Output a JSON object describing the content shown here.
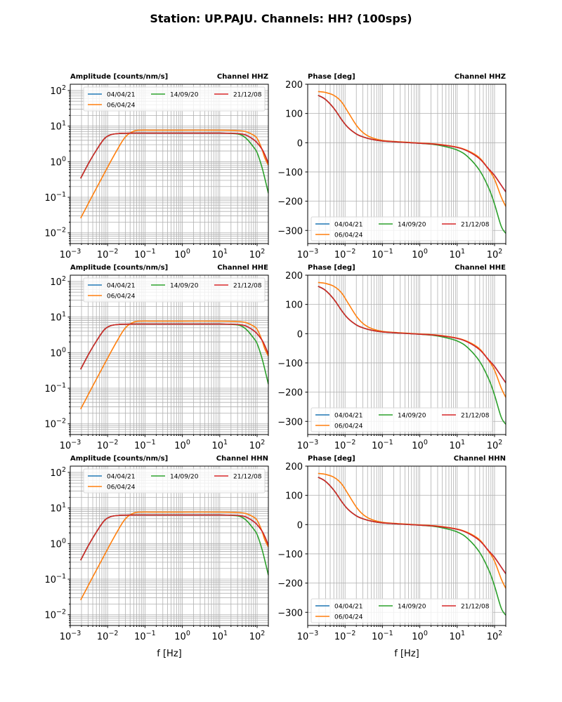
{
  "figure": {
    "title": "Station: UP.PAJU. Channels: HH? (100sps)",
    "xlabel": "f [Hz]"
  },
  "series_style": [
    {
      "name": "04/04/21",
      "color": "#1f77b4"
    },
    {
      "name": "06/04/24",
      "color": "#ff7f0e"
    },
    {
      "name": "14/09/20",
      "color": "#2ca02c"
    },
    {
      "name": "21/12/08",
      "color": "#d62728"
    }
  ],
  "chart_data": [
    {
      "type": "line",
      "panel": "amplitude",
      "channel_label": "Channel HHZ",
      "title": "Amplitude [counts/nm/s]",
      "xscale": "log",
      "yscale": "log",
      "xlim": [
        0.001,
        200
      ],
      "ylim": [
        0.005,
        150
      ],
      "xticks": [
        "10^-3",
        "10^-2",
        "10^-1",
        "10^0",
        "10^1",
        "10^2"
      ],
      "yticks": [
        "10^-2",
        "10^-1",
        "10^0",
        "10^1",
        "10^2"
      ],
      "grid": "major+minor",
      "legend": "top-center",
      "x": [
        0.0019,
        0.003,
        0.005,
        0.008,
        0.012,
        0.02,
        0.03,
        0.05,
        0.08,
        0.15,
        1,
        10,
        30,
        50,
        80,
        100,
        130,
        160,
        200
      ],
      "series": [
        {
          "name": "04/04/21",
          "values": [
            0.34,
            0.85,
            2.1,
            4.3,
            5.7,
            6.2,
            6.3,
            6.35,
            6.35,
            6.35,
            6.35,
            6.35,
            6.2,
            5.6,
            4.2,
            3.4,
            2.4,
            1.6,
            0.9
          ]
        },
        {
          "name": "06/04/24",
          "values": [
            0.026,
            0.065,
            0.18,
            0.45,
            1.0,
            2.6,
            5.0,
            7.2,
            7.7,
            7.7,
            7.7,
            7.7,
            7.5,
            7.0,
            5.6,
            4.5,
            2.5,
            1.3,
            0.8
          ]
        },
        {
          "name": "14/09/20",
          "values": [
            0.34,
            0.85,
            2.1,
            4.3,
            5.7,
            6.2,
            6.3,
            6.35,
            6.35,
            6.35,
            6.35,
            6.35,
            6.0,
            4.6,
            2.6,
            1.8,
            0.8,
            0.35,
            0.13
          ]
        },
        {
          "name": "21/12/08",
          "values": [
            0.34,
            0.85,
            2.1,
            4.3,
            5.7,
            6.2,
            6.3,
            6.35,
            6.35,
            6.35,
            6.35,
            6.35,
            6.2,
            5.6,
            4.2,
            3.4,
            2.4,
            1.6,
            0.9
          ]
        }
      ]
    },
    {
      "type": "line",
      "panel": "phase",
      "channel_label": "Channel HHZ",
      "title": "Phase [deg]",
      "xscale": "log",
      "yscale": "linear",
      "xlim": [
        0.001,
        200
      ],
      "ylim": [
        -345,
        200
      ],
      "xticks": [
        "10^-3",
        "10^-2",
        "10^-1",
        "10^0",
        "10^1",
        "10^2"
      ],
      "yticks": [
        "-300",
        "-200",
        "-100",
        "0",
        "100",
        "200"
      ],
      "grid": "major+minor-x",
      "legend": "bottom-left",
      "x": [
        0.0019,
        0.003,
        0.005,
        0.008,
        0.012,
        0.02,
        0.03,
        0.05,
        0.1,
        0.3,
        1,
        3,
        10,
        20,
        40,
        70,
        100,
        150,
        200
      ],
      "series": [
        {
          "name": "04/04/21",
          "values": [
            162,
            148,
            118,
            80,
            52,
            30,
            20,
            12,
            6,
            2,
            -2,
            -6,
            -16,
            -30,
            -55,
            -90,
            -112,
            -145,
            -168
          ]
        },
        {
          "name": "06/04/24",
          "values": [
            175,
            172,
            162,
            140,
            105,
            60,
            35,
            18,
            8,
            3,
            -1,
            -5,
            -15,
            -28,
            -52,
            -92,
            -125,
            -185,
            -218
          ]
        },
        {
          "name": "14/09/20",
          "values": [
            162,
            148,
            118,
            80,
            52,
            30,
            20,
            12,
            6,
            2,
            -2,
            -8,
            -25,
            -50,
            -95,
            -155,
            -210,
            -285,
            -310
          ]
        },
        {
          "name": "21/12/08",
          "values": [
            162,
            148,
            118,
            80,
            52,
            30,
            20,
            12,
            6,
            2,
            -2,
            -6,
            -16,
            -30,
            -55,
            -90,
            -112,
            -145,
            -168
          ]
        }
      ]
    },
    {
      "type": "line",
      "panel": "amplitude",
      "channel_label": "Channel HHE",
      "title": "Amplitude [counts/nm/s]",
      "xscale": "log",
      "yscale": "log",
      "xlim": [
        0.001,
        200
      ],
      "ylim": [
        0.005,
        150
      ],
      "xticks": [
        "10^-3",
        "10^-2",
        "10^-1",
        "10^0",
        "10^1",
        "10^2"
      ],
      "yticks": [
        "10^-2",
        "10^-1",
        "10^0",
        "10^1",
        "10^2"
      ],
      "grid": "major+minor",
      "legend": "top-center",
      "x": [
        0.0019,
        0.003,
        0.005,
        0.008,
        0.012,
        0.02,
        0.03,
        0.05,
        0.08,
        0.15,
        1,
        10,
        30,
        50,
        80,
        100,
        130,
        160,
        200
      ],
      "series": [
        {
          "name": "04/04/21",
          "values": [
            0.34,
            0.85,
            2.1,
            4.3,
            5.7,
            6.2,
            6.3,
            6.35,
            6.35,
            6.35,
            6.35,
            6.35,
            6.2,
            5.6,
            4.2,
            3.4,
            2.4,
            1.6,
            0.9
          ]
        },
        {
          "name": "06/04/24",
          "values": [
            0.026,
            0.065,
            0.18,
            0.45,
            1.0,
            2.6,
            5.0,
            7.2,
            7.7,
            7.7,
            7.7,
            7.7,
            7.5,
            7.0,
            5.6,
            4.5,
            2.5,
            1.3,
            0.8
          ]
        },
        {
          "name": "14/09/20",
          "values": [
            0.34,
            0.85,
            2.1,
            4.3,
            5.7,
            6.2,
            6.3,
            6.35,
            6.35,
            6.35,
            6.35,
            6.35,
            6.0,
            4.6,
            2.6,
            1.8,
            0.8,
            0.35,
            0.13
          ]
        },
        {
          "name": "21/12/08",
          "values": [
            0.34,
            0.85,
            2.1,
            4.3,
            5.7,
            6.2,
            6.3,
            6.35,
            6.35,
            6.35,
            6.35,
            6.35,
            6.2,
            5.6,
            4.2,
            3.4,
            2.4,
            1.6,
            0.9
          ]
        }
      ]
    },
    {
      "type": "line",
      "panel": "phase",
      "channel_label": "Channel HHE",
      "title": "Phase [deg]",
      "xscale": "log",
      "yscale": "linear",
      "xlim": [
        0.001,
        200
      ],
      "ylim": [
        -345,
        200
      ],
      "xticks": [
        "10^-3",
        "10^-2",
        "10^-1",
        "10^0",
        "10^1",
        "10^2"
      ],
      "yticks": [
        "-300",
        "-200",
        "-100",
        "0",
        "100",
        "200"
      ],
      "grid": "major+minor-x",
      "legend": "bottom-left",
      "x": [
        0.0019,
        0.003,
        0.005,
        0.008,
        0.012,
        0.02,
        0.03,
        0.05,
        0.1,
        0.3,
        1,
        3,
        10,
        20,
        40,
        70,
        100,
        150,
        200
      ],
      "series": [
        {
          "name": "04/04/21",
          "values": [
            162,
            148,
            118,
            80,
            52,
            30,
            20,
            12,
            6,
            2,
            -2,
            -6,
            -16,
            -30,
            -55,
            -90,
            -112,
            -145,
            -168
          ]
        },
        {
          "name": "06/04/24",
          "values": [
            175,
            172,
            162,
            140,
            105,
            60,
            35,
            18,
            8,
            3,
            -1,
            -5,
            -15,
            -28,
            -52,
            -92,
            -125,
            -185,
            -218
          ]
        },
        {
          "name": "14/09/20",
          "values": [
            162,
            148,
            118,
            80,
            52,
            30,
            20,
            12,
            6,
            2,
            -2,
            -8,
            -25,
            -50,
            -95,
            -155,
            -210,
            -285,
            -310
          ]
        },
        {
          "name": "21/12/08",
          "values": [
            162,
            148,
            118,
            80,
            52,
            30,
            20,
            12,
            6,
            2,
            -2,
            -6,
            -16,
            -30,
            -55,
            -90,
            -112,
            -145,
            -168
          ]
        }
      ]
    },
    {
      "type": "line",
      "panel": "amplitude",
      "channel_label": "Channel HHN",
      "title": "Amplitude [counts/nm/s]",
      "xscale": "log",
      "yscale": "log",
      "xlim": [
        0.001,
        200
      ],
      "ylim": [
        0.005,
        150
      ],
      "xticks": [
        "10^-3",
        "10^-2",
        "10^-1",
        "10^0",
        "10^1",
        "10^2"
      ],
      "yticks": [
        "10^-2",
        "10^-1",
        "10^0",
        "10^1",
        "10^2"
      ],
      "grid": "major+minor",
      "legend": "top-center",
      "x": [
        0.0019,
        0.003,
        0.005,
        0.008,
        0.012,
        0.02,
        0.03,
        0.05,
        0.08,
        0.15,
        1,
        10,
        30,
        50,
        80,
        100,
        130,
        160,
        200
      ],
      "series": [
        {
          "name": "04/04/21",
          "values": [
            0.34,
            0.85,
            2.1,
            4.3,
            5.7,
            6.2,
            6.3,
            6.35,
            6.35,
            6.35,
            6.35,
            6.35,
            6.2,
            5.6,
            4.2,
            3.4,
            2.4,
            1.6,
            0.9
          ]
        },
        {
          "name": "06/04/24",
          "values": [
            0.026,
            0.065,
            0.18,
            0.45,
            1.0,
            2.6,
            5.0,
            7.2,
            7.7,
            7.7,
            7.7,
            7.7,
            7.5,
            7.0,
            5.6,
            4.5,
            2.5,
            1.3,
            0.8
          ]
        },
        {
          "name": "14/09/20",
          "values": [
            0.34,
            0.85,
            2.1,
            4.3,
            5.7,
            6.2,
            6.3,
            6.35,
            6.35,
            6.35,
            6.35,
            6.35,
            6.0,
            4.6,
            2.6,
            1.8,
            0.8,
            0.35,
            0.13
          ]
        },
        {
          "name": "21/12/08",
          "values": [
            0.34,
            0.85,
            2.1,
            4.3,
            5.7,
            6.2,
            6.3,
            6.35,
            6.35,
            6.35,
            6.35,
            6.35,
            6.2,
            5.6,
            4.2,
            3.4,
            2.4,
            1.6,
            0.9
          ]
        }
      ]
    },
    {
      "type": "line",
      "panel": "phase",
      "channel_label": "Channel HHN",
      "title": "Phase [deg]",
      "xscale": "log",
      "yscale": "linear",
      "xlim": [
        0.001,
        200
      ],
      "ylim": [
        -345,
        200
      ],
      "xticks": [
        "10^-3",
        "10^-2",
        "10^-1",
        "10^0",
        "10^1",
        "10^2"
      ],
      "yticks": [
        "-300",
        "-200",
        "-100",
        "0",
        "100",
        "200"
      ],
      "grid": "major+minor-x",
      "legend": "bottom-left",
      "x": [
        0.0019,
        0.003,
        0.005,
        0.008,
        0.012,
        0.02,
        0.03,
        0.05,
        0.1,
        0.3,
        1,
        3,
        10,
        20,
        40,
        70,
        100,
        150,
        200
      ],
      "series": [
        {
          "name": "04/04/21",
          "values": [
            162,
            148,
            118,
            80,
            52,
            30,
            20,
            12,
            6,
            2,
            -2,
            -6,
            -16,
            -30,
            -55,
            -90,
            -112,
            -145,
            -168
          ]
        },
        {
          "name": "06/04/24",
          "values": [
            175,
            172,
            162,
            140,
            105,
            60,
            35,
            18,
            8,
            3,
            -1,
            -5,
            -15,
            -28,
            -52,
            -92,
            -125,
            -185,
            -218
          ]
        },
        {
          "name": "14/09/20",
          "values": [
            162,
            148,
            118,
            80,
            52,
            30,
            20,
            12,
            6,
            2,
            -2,
            -8,
            -25,
            -50,
            -95,
            -155,
            -210,
            -285,
            -310
          ]
        },
        {
          "name": "21/12/08",
          "values": [
            162,
            148,
            118,
            80,
            52,
            30,
            20,
            12,
            6,
            2,
            -2,
            -6,
            -16,
            -30,
            -55,
            -90,
            -112,
            -145,
            -168
          ]
        }
      ]
    }
  ]
}
